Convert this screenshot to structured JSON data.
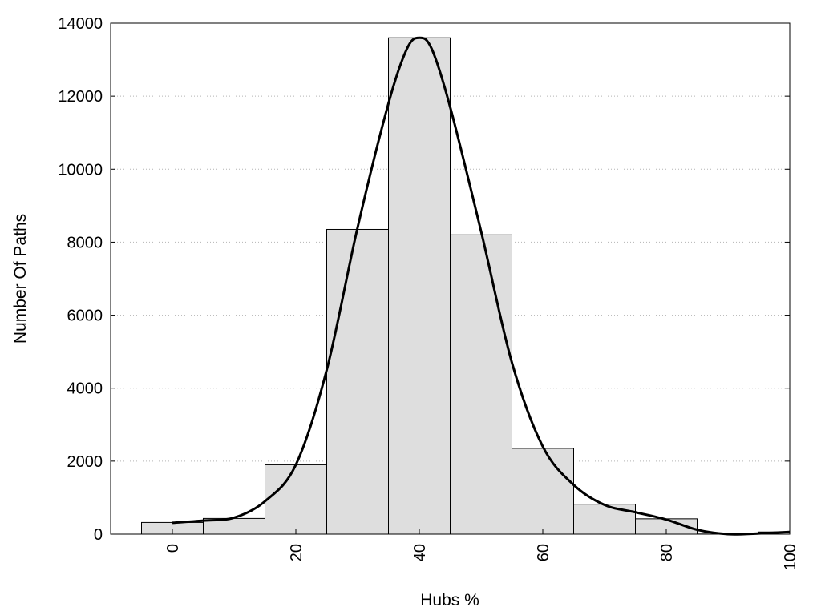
{
  "chart_data": {
    "type": "bar",
    "title": "",
    "xlabel": "Hubs %",
    "ylabel": "Number Of Paths",
    "xlim": [
      -10,
      100
    ],
    "ylim": [
      0,
      14000
    ],
    "x_ticks": [
      0,
      20,
      40,
      60,
      80,
      100
    ],
    "y_ticks": [
      0,
      2000,
      4000,
      6000,
      8000,
      10000,
      12000,
      14000
    ],
    "grid": "horizontal-dotted",
    "bin_width": 10,
    "bins": [
      {
        "x": 0,
        "value": 320
      },
      {
        "x": 10,
        "value": 430
      },
      {
        "x": 20,
        "value": 1900
      },
      {
        "x": 30,
        "value": 8350
      },
      {
        "x": 40,
        "value": 13600
      },
      {
        "x": 50,
        "value": 8200
      },
      {
        "x": 60,
        "value": 2350
      },
      {
        "x": 70,
        "value": 820
      },
      {
        "x": 80,
        "value": 420
      },
      {
        "x": 90,
        "value": 30
      },
      {
        "x": 100,
        "value": 60
      }
    ],
    "curve": {
      "x": [
        0,
        5,
        10,
        15,
        20,
        25,
        30,
        35,
        38,
        40,
        42,
        45,
        50,
        55,
        60,
        65,
        70,
        75,
        80,
        85,
        90,
        95,
        100
      ],
      "y": [
        310,
        370,
        450,
        900,
        1900,
        4500,
        8400,
        11800,
        13300,
        13600,
        13300,
        11700,
        8300,
        4700,
        2400,
        1350,
        800,
        600,
        400,
        120,
        0,
        20,
        60
      ]
    },
    "colors": {
      "bar_fill": "#dedede",
      "bar_edge": "#000000",
      "curve": "#000000",
      "grid": "#b4b4b4"
    }
  }
}
